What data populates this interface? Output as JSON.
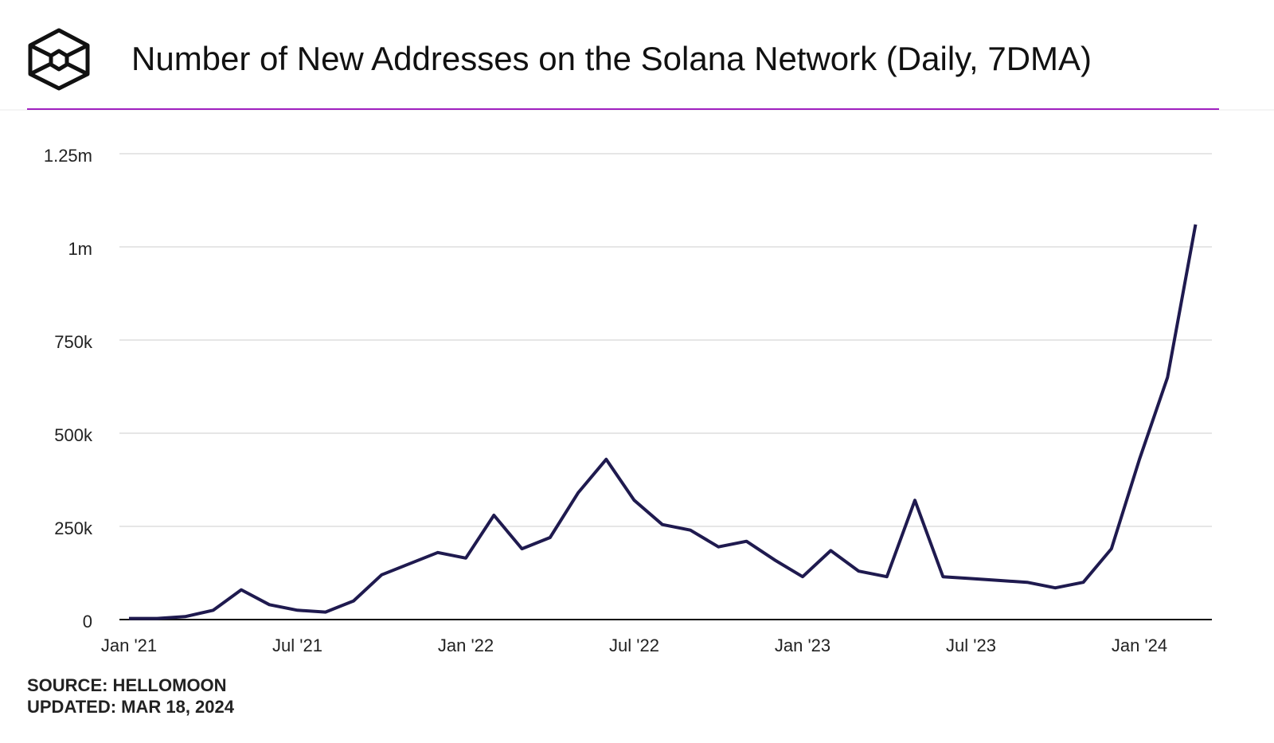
{
  "chart_data": {
    "type": "line",
    "title": "Number of New Addresses on the Solana Network (Daily, 7DMA)",
    "source": "SOURCE: HELLOMOON",
    "updated": "UPDATED: MAR 18, 2024",
    "x": [
      "2021-01",
      "2021-02",
      "2021-03",
      "2021-04",
      "2021-05",
      "2021-06",
      "2021-07",
      "2021-08",
      "2021-09",
      "2021-10",
      "2021-11",
      "2021-12",
      "2022-01",
      "2022-02",
      "2022-03",
      "2022-04",
      "2022-05",
      "2022-06",
      "2022-07",
      "2022-08",
      "2022-09",
      "2022-10",
      "2022-11",
      "2022-12",
      "2023-01",
      "2023-02",
      "2023-03",
      "2023-04",
      "2023-05",
      "2023-06",
      "2023-07",
      "2023-08",
      "2023-09",
      "2023-10",
      "2023-11",
      "2023-12",
      "2024-01",
      "2024-02",
      "2024-03"
    ],
    "series": [
      {
        "color": "#1f1a4f",
        "values": [
          3000,
          3000,
          8000,
          25000,
          80000,
          40000,
          25000,
          20000,
          50000,
          120000,
          150000,
          180000,
          165000,
          280000,
          190000,
          220000,
          340000,
          430000,
          320000,
          255000,
          240000,
          195000,
          210000,
          160000,
          115000,
          185000,
          130000,
          115000,
          320000,
          115000,
          110000,
          105000,
          100000,
          85000,
          100000,
          190000,
          430000,
          650000,
          1060000
        ]
      }
    ],
    "xticks": [
      {
        "value": "2021-01",
        "label": "Jan '21"
      },
      {
        "value": "2021-07",
        "label": "Jul '21"
      },
      {
        "value": "2022-01",
        "label": "Jan '22"
      },
      {
        "value": "2022-07",
        "label": "Jul '22"
      },
      {
        "value": "2023-01",
        "label": "Jan '23"
      },
      {
        "value": "2023-07",
        "label": "Jul '23"
      },
      {
        "value": "2024-01",
        "label": "Jan '24"
      }
    ],
    "ylim": [
      0,
      1250000
    ],
    "yticks": [
      0,
      {
        "value": 250000,
        "label": "250k"
      },
      {
        "value": 500000,
        "label": "500k"
      },
      {
        "value": 750000,
        "label": "750k"
      },
      {
        "value": 1000000,
        "label": "1m"
      },
      {
        "value": 1250000,
        "label": "1.25m"
      }
    ],
    "grid": true
  }
}
